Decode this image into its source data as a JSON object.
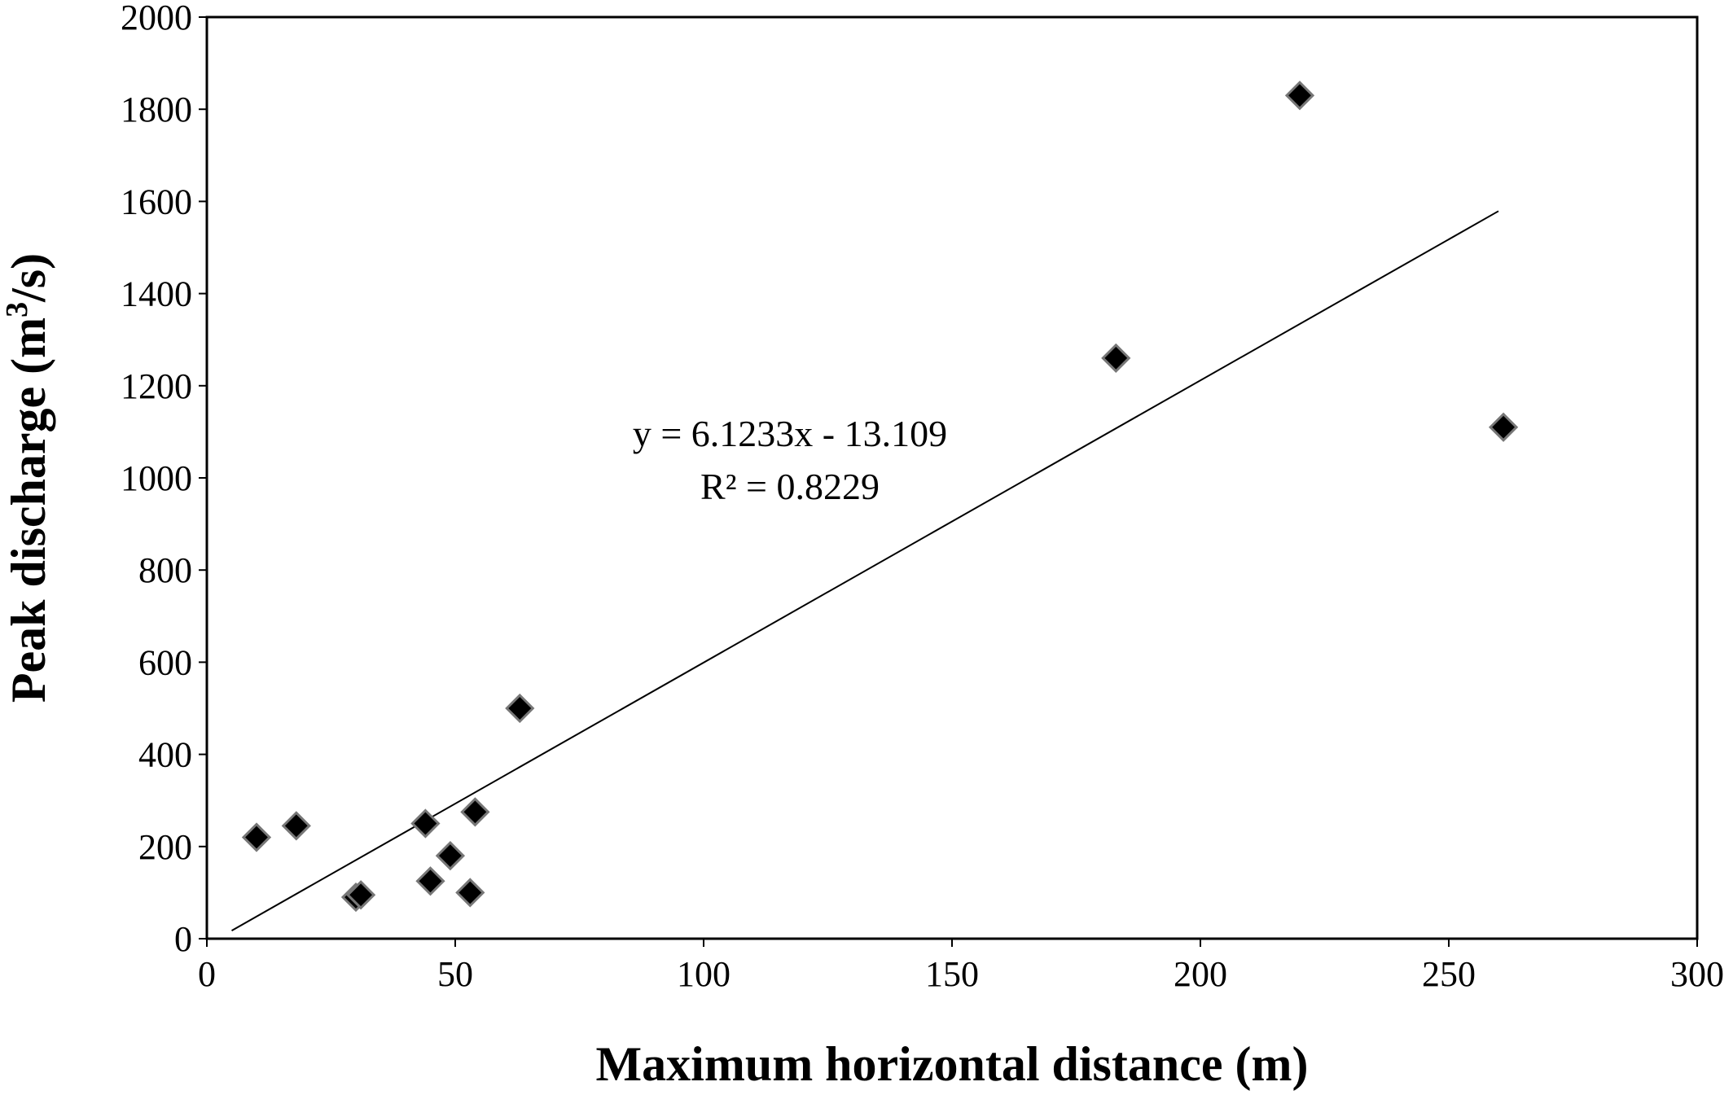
{
  "chart_data": {
    "type": "scatter",
    "title": "",
    "xlabel": "Maximum  horizontal  distance (m)",
    "ylabel_main": "Peak discharge (m",
    "ylabel_sup": "3",
    "ylabel_tail": "/s)",
    "xlim": [
      0,
      300
    ],
    "ylim": [
      0,
      2000
    ],
    "x_ticks": [
      0,
      50,
      100,
      150,
      200,
      250,
      300
    ],
    "y_ticks": [
      0,
      200,
      400,
      600,
      800,
      1000,
      1200,
      1400,
      1600,
      1800,
      2000
    ],
    "grid": false,
    "legend": "none",
    "marker": "diamond",
    "marker_color": "#000000",
    "series": [
      {
        "points": [
          {
            "x": 10,
            "y": 220
          },
          {
            "x": 18,
            "y": 245
          },
          {
            "x": 30,
            "y": 90
          },
          {
            "x": 31,
            "y": 95
          },
          {
            "x": 44,
            "y": 250
          },
          {
            "x": 45,
            "y": 125
          },
          {
            "x": 49,
            "y": 180
          },
          {
            "x": 53,
            "y": 100
          },
          {
            "x": 54,
            "y": 275
          },
          {
            "x": 63,
            "y": 500
          },
          {
            "x": 183,
            "y": 1260
          },
          {
            "x": 220,
            "y": 1830
          },
          {
            "x": 261,
            "y": 1110
          }
        ]
      }
    ],
    "trendline": {
      "slope": 6.1233,
      "intercept": -13.109,
      "x_range": [
        5,
        260
      ],
      "equation_label": "y = 6.1233x - 13.109",
      "r2_label": "R² = 0.8229"
    }
  }
}
